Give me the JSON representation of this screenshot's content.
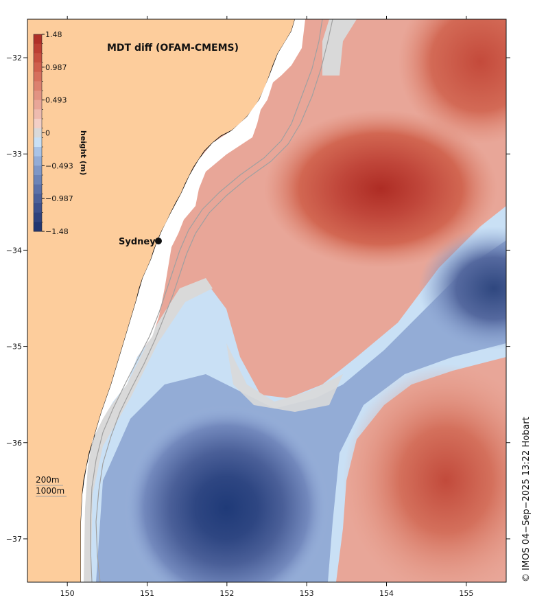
{
  "title": "MDT diff (OFAM-CMEMS)",
  "colorbar": {
    "title": "height (m)",
    "labels": [
      "1.48",
      "0.987",
      "0.493",
      "0",
      "−0.493",
      "−0.987",
      "−1.48"
    ],
    "colors": [
      "#b03028",
      "#bc3f33",
      "#c64f3f",
      "#cf5f4d",
      "#d6705d",
      "#dc816e",
      "#e29382",
      "#e8a698",
      "#eebbaf",
      "#f3cfc6",
      "#d9d9d9",
      "#c9e0f5",
      "#a9c3e6",
      "#93acd6",
      "#7f97c6",
      "#6d84b7",
      "#5c71a8",
      "#4c6099",
      "#3d508b",
      "#2f427d",
      "#223671"
    ]
  },
  "axes": {
    "x_ticks": [
      "150",
      "151",
      "152",
      "153",
      "154",
      "155"
    ],
    "y_ticks": [
      "−32",
      "−33",
      "−34",
      "−35",
      "−36",
      "−37"
    ],
    "lon_range": [
      149.5,
      155.5
    ],
    "lat_range": [
      -37.45,
      -31.6
    ]
  },
  "annotations": {
    "city": "Sydney",
    "depth_200": "200m",
    "depth_1000": "1000m"
  },
  "credit": "© IMOS 04−Sep−2025 13:22 Hobart",
  "colors": {
    "land": "#fdcd9c",
    "coast": "#111111",
    "isobath": "#a0a0a0"
  }
}
